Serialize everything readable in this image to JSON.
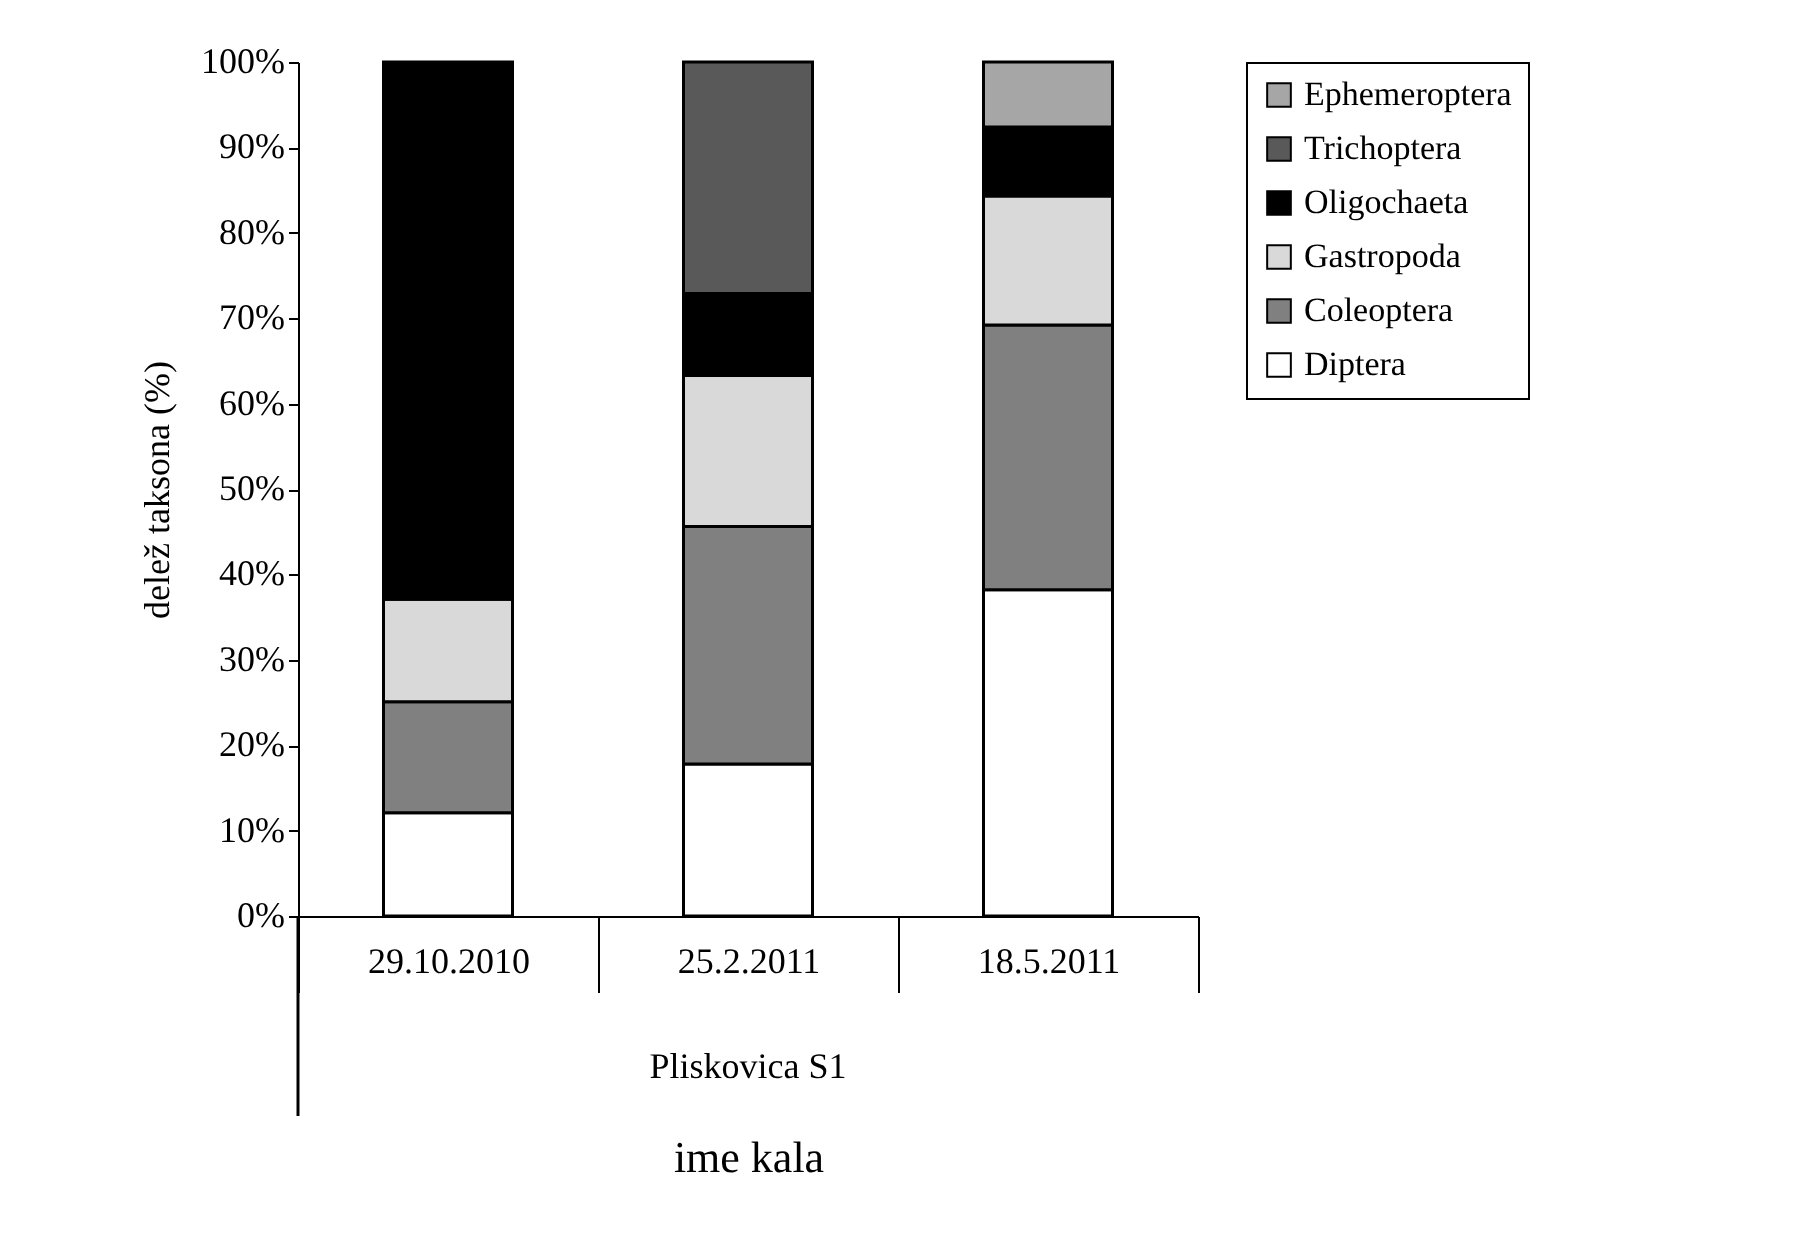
{
  "chart_data": {
    "type": "bar",
    "stacked": true,
    "ylabel": "delež taksona (%)",
    "xlabel": "ime kala",
    "annotations": [
      "Pliskovica S1"
    ],
    "categories": [
      "29.10.2010",
      "25.2.2011",
      "18.5.2011"
    ],
    "series": [
      {
        "name": "Diptera",
        "color": "#ffffff",
        "values": [
          12.1,
          17.8,
          38.2
        ]
      },
      {
        "name": "Coleoptera",
        "color": "#808080",
        "values": [
          13.0,
          27.8,
          31.0
        ]
      },
      {
        "name": "Gastropoda",
        "color": "#d9d9d9",
        "values": [
          12.0,
          17.7,
          15.1
        ]
      },
      {
        "name": "Oligochaeta",
        "color": "#000000",
        "values": [
          62.9,
          9.6,
          8.1
        ]
      },
      {
        "name": "Trichoptera",
        "color": "#595959",
        "values": [
          null,
          27.1,
          null
        ]
      },
      {
        "name": "Ephemeroptera",
        "color": "#a6a6a6",
        "values": [
          null,
          null,
          7.6
        ]
      }
    ],
    "ylim": [
      0,
      100
    ],
    "yticks": [
      {
        "value": 0,
        "label": "0%"
      },
      {
        "value": 10,
        "label": "10%"
      },
      {
        "value": 20,
        "label": "20%"
      },
      {
        "value": 30,
        "label": "30%"
      },
      {
        "value": 40,
        "label": "40%"
      },
      {
        "value": 50,
        "label": "50%"
      },
      {
        "value": 60,
        "label": "60%"
      },
      {
        "value": 70,
        "label": "70%"
      },
      {
        "value": 80,
        "label": "80%"
      },
      {
        "value": 90,
        "label": "90%"
      },
      {
        "value": 100,
        "label": "100%"
      }
    ],
    "legend": "right"
  }
}
